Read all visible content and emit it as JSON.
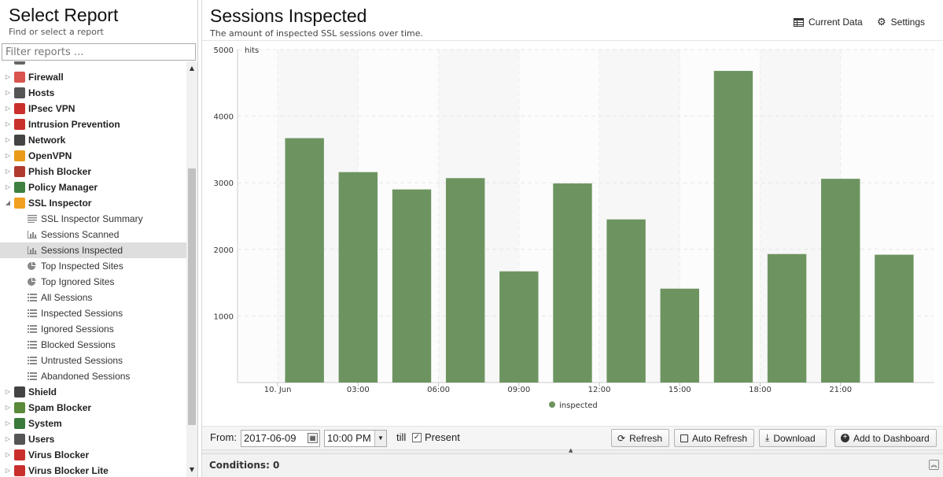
{
  "left": {
    "title": "Select Report",
    "subtitle": "Find or select a report",
    "filter_placeholder": "Filter reports ...",
    "apps": [
      {
        "label": "Firewall",
        "icon": "firewall-icon",
        "color": "#d9534f"
      },
      {
        "label": "Hosts",
        "icon": "hosts-icon",
        "color": "#555555"
      },
      {
        "label": "IPsec VPN",
        "icon": "ipsec-vpn-icon",
        "color": "#c9302c"
      },
      {
        "label": "Intrusion Prevention",
        "icon": "intrusion-prevention-icon",
        "color": "#c9302c"
      },
      {
        "label": "Network",
        "icon": "network-icon",
        "color": "#444444"
      },
      {
        "label": "OpenVPN",
        "icon": "openvpn-icon",
        "color": "#e89c1a"
      },
      {
        "label": "Phish Blocker",
        "icon": "phish-blocker-icon",
        "color": "#b03a2e"
      },
      {
        "label": "Policy Manager",
        "icon": "policy-manager-icon",
        "color": "#3f7f3f"
      },
      {
        "label": "SSL Inspector",
        "icon": "ssl-inspector-icon",
        "color": "#f0a020"
      }
    ],
    "ssl_reports": [
      {
        "label": "SSL Inspector Summary",
        "icon": "text-icon"
      },
      {
        "label": "Sessions Scanned",
        "icon": "bar-chart-icon"
      },
      {
        "label": "Sessions Inspected",
        "icon": "bar-chart-icon"
      },
      {
        "label": "Top Inspected Sites",
        "icon": "pie-chart-icon"
      },
      {
        "label": "Top Ignored Sites",
        "icon": "pie-chart-icon"
      },
      {
        "label": "All Sessions",
        "icon": "list-icon"
      },
      {
        "label": "Inspected Sessions",
        "icon": "list-icon"
      },
      {
        "label": "Ignored Sessions",
        "icon": "list-icon"
      },
      {
        "label": "Blocked Sessions",
        "icon": "list-icon"
      },
      {
        "label": "Untrusted Sessions",
        "icon": "list-icon"
      },
      {
        "label": "Abandoned Sessions",
        "icon": "list-icon"
      }
    ],
    "apps_after": [
      {
        "label": "Shield",
        "icon": "shield-icon",
        "color": "#444444"
      },
      {
        "label": "Spam Blocker",
        "icon": "spam-blocker-icon",
        "color": "#5a8a3a"
      },
      {
        "label": "System",
        "icon": "system-icon",
        "color": "#3a7a3a"
      },
      {
        "label": "Users",
        "icon": "users-icon",
        "color": "#555555"
      },
      {
        "label": "Virus Blocker",
        "icon": "virus-blocker-icon",
        "color": "#c9302c"
      },
      {
        "label": "Virus Blocker Lite",
        "icon": "virus-blocker-lite-icon",
        "color": "#c9302c"
      }
    ],
    "selected_report": "Sessions Inspected"
  },
  "header": {
    "title": "Sessions Inspected",
    "description": "The amount of inspected SSL sessions over time.",
    "current_data_label": "Current Data",
    "settings_label": "Settings"
  },
  "toolbar": {
    "from_label": "From:",
    "date_value": "2017-06-09",
    "time_value": "10:00 PM",
    "till_label": "till",
    "present_label": "Present",
    "present_checked": true,
    "refresh_label": "Refresh",
    "auto_refresh_label": "Auto Refresh",
    "download_label": "Download",
    "add_dashboard_label": "Add to Dashboard"
  },
  "conditions": {
    "label": "Conditions: 0"
  },
  "chart_data": {
    "type": "bar",
    "x_hours": [
      1,
      3,
      5,
      7,
      9,
      11,
      13,
      15,
      17,
      19,
      21,
      23
    ],
    "values": [
      3670,
      3160,
      2900,
      3070,
      1670,
      2990,
      2450,
      1410,
      4680,
      1930,
      3060,
      1920
    ],
    "xticks": [
      {
        "hour": 0,
        "label": "10. Jun"
      },
      {
        "hour": 3,
        "label": "03:00"
      },
      {
        "hour": 6,
        "label": "06:00"
      },
      {
        "hour": 9,
        "label": "09:00"
      },
      {
        "hour": 12,
        "label": "12:00"
      },
      {
        "hour": 15,
        "label": "15:00"
      },
      {
        "hour": 18,
        "label": "18:00"
      },
      {
        "hour": 21,
        "label": "21:00"
      }
    ],
    "yticks": [
      1000,
      2000,
      3000,
      4000,
      5000
    ],
    "ylim": [
      0,
      5000
    ],
    "ylabel": "hits",
    "series_name": "inspected",
    "bar_color": "#6d9460",
    "grid": true,
    "legend_position": "bottom-center"
  }
}
